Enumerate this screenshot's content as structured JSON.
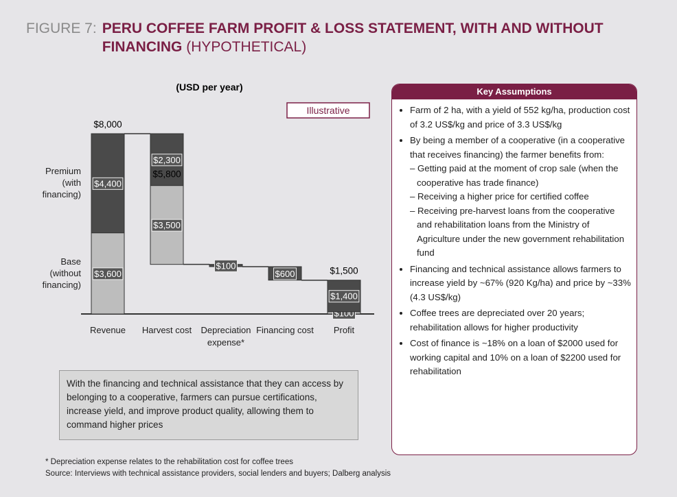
{
  "header": {
    "figure": "FIGURE 7:",
    "title": "PERU COFFEE FARM PROFIT & LOSS STATEMENT, WITH AND WITHOUT FINANCING",
    "qualifier": "(HYPOTHETICAL)"
  },
  "chart_data": {
    "type": "waterfall",
    "subtitle": "(USD per year)",
    "annotation": "Illustrative",
    "categories": [
      "Revenue",
      "Harvest cost",
      "Depreciation expense*",
      "Financing cost",
      "Profit"
    ],
    "measure": [
      "total",
      "decrease",
      "decrease",
      "decrease",
      "total"
    ],
    "totals": [
      8000,
      5800,
      null,
      null,
      1500
    ],
    "total_labels": [
      "$8,000",
      "$5,800",
      null,
      null,
      "$1,500"
    ],
    "series": [
      {
        "name": "Base (without financing)",
        "color": "#bdbdbd",
        "values": [
          3600,
          3500,
          null,
          null,
          100
        ],
        "value_labels": [
          "$3,600",
          "$3,500",
          null,
          null,
          "$100"
        ]
      },
      {
        "name": "Premium (with financing)",
        "color": "#4a4a4a",
        "values": [
          4400,
          2300,
          100,
          600,
          1400
        ],
        "value_labels": [
          "$4,400",
          "$2,300",
          "$100",
          "$600",
          "$1,400"
        ]
      }
    ],
    "ylim": [
      0,
      8000
    ]
  },
  "note": "With the financing and technical assistance that they can access by belonging to a cooperative, farmers can pursue certifications, increase yield, and improve product quality, allowing them to command higher prices",
  "key_assumptions": {
    "title": "Key Assumptions",
    "items": [
      {
        "text": "Farm of 2 ha, with a yield of 552 kg/ha, production cost of 3.2 US$/kg and price of 3.3 US$/kg",
        "subitems": []
      },
      {
        "text": "By being a member of a cooperative (in a cooperative that receives financing) the farmer benefits from:",
        "subitems": [
          "– Getting paid at the moment of crop sale (when the cooperative has trade finance)",
          "– Receiving a higher price for certified coffee",
          "– Receiving pre-harvest loans from the cooperative and rehabilitation loans from the Ministry of Agriculture under the new government rehabilitation fund"
        ]
      },
      {
        "text": "Financing and technical assistance allows farmers to increase yield by ~67% (920 Kg/ha) and price by ~33% (4.3 US$/kg)",
        "subitems": []
      },
      {
        "text": "Coffee trees are depreciated over 20 years; rehabilitation allows for higher productivity",
        "subitems": []
      },
      {
        "text": "Cost of finance is ~18% on a loan of $2000 used for working capital and 10% on a loan of $2200 used for rehabilitation",
        "subitems": []
      }
    ]
  },
  "footnotes": [
    "* Depreciation expense relates to the rehabilitation cost for coffee trees",
    "Source: Interviews with  technical assistance providers, social lenders and buyers; Dalberg analysis"
  ]
}
